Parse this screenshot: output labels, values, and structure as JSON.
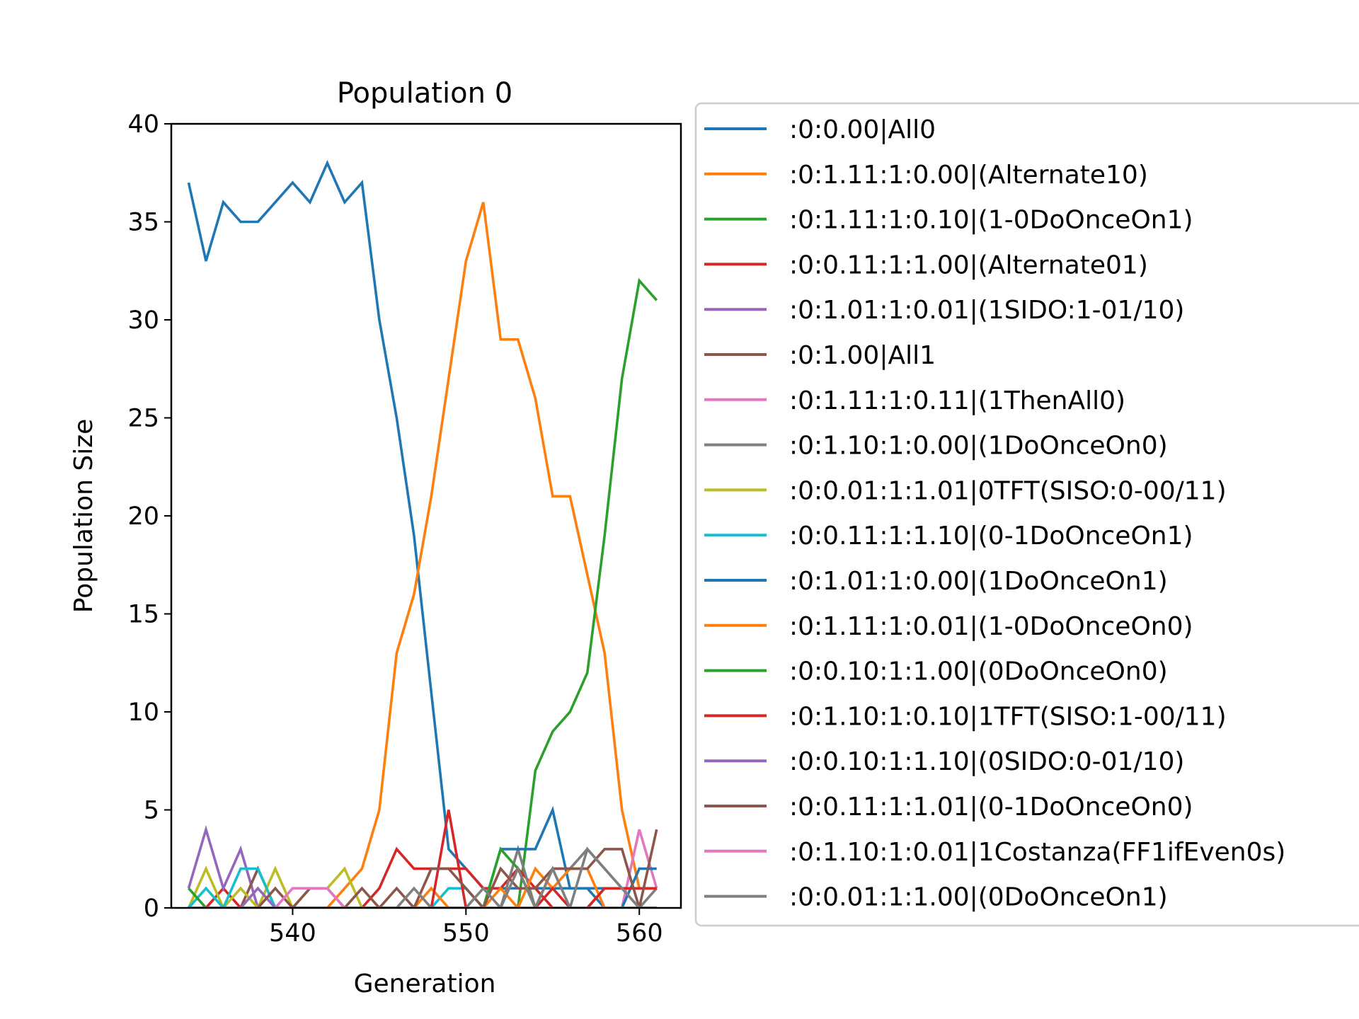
{
  "chart_data": {
    "type": "line",
    "title": "Population 0",
    "xlabel": "Generation",
    "ylabel": "Population Size",
    "xlim": [
      533,
      562.4
    ],
    "ylim": [
      0,
      40
    ],
    "xticks": [
      540,
      550,
      560
    ],
    "yticks": [
      0,
      5,
      10,
      15,
      20,
      25,
      30,
      35,
      40
    ],
    "legend_position": "outside-right",
    "grid": false,
    "x": [
      534,
      535,
      536,
      537,
      538,
      539,
      540,
      541,
      542,
      543,
      544,
      545,
      546,
      547,
      548,
      549,
      550,
      551,
      552,
      553,
      554,
      555,
      556,
      557,
      558,
      559,
      560,
      561
    ],
    "series": [
      {
        "name": ":0:0.00|All0",
        "color": "#1f77b4",
        "values": [
          37,
          33,
          36,
          35,
          35,
          36,
          37,
          36,
          38,
          36,
          37,
          30,
          25,
          19,
          11,
          3,
          2,
          1,
          1,
          1,
          1,
          1,
          1,
          1,
          1,
          1,
          1,
          1
        ]
      },
      {
        "name": ":0:1.11:1:0.00|(Alternate10)",
        "color": "#ff7f0e",
        "values": [
          0,
          0,
          0,
          0,
          0,
          0,
          0,
          0,
          0,
          1,
          2,
          5,
          13,
          16,
          21,
          27,
          33,
          36,
          29,
          29,
          26,
          21,
          21,
          17,
          13,
          5,
          1,
          1
        ]
      },
      {
        "name": ":0:1.11:1:0.10|(1-0DoOnceOn1)",
        "color": "#2ca02c",
        "values": [
          0,
          0,
          0,
          0,
          0,
          0,
          0,
          0,
          0,
          0,
          0,
          0,
          0,
          0,
          0,
          0,
          0,
          0,
          0,
          0,
          7,
          9,
          10,
          12,
          19,
          27,
          32,
          31
        ]
      },
      {
        "name": ":0:0.11:1:1.00|(Alternate01)",
        "color": "#d62728",
        "values": [
          0,
          0,
          1,
          0,
          0,
          0,
          0,
          0,
          0,
          0,
          0,
          1,
          3,
          2,
          2,
          2,
          2,
          1,
          1,
          2,
          1,
          0,
          0,
          0,
          1,
          1,
          1,
          1
        ]
      },
      {
        "name": ":0:1.01:1:0.01|(1SIDO:1-01/10)",
        "color": "#9467bd",
        "values": [
          1,
          4,
          1,
          3,
          0,
          0,
          0,
          0,
          0,
          0,
          0,
          0,
          0,
          0,
          0,
          0,
          0,
          0,
          0,
          0,
          0,
          0,
          0,
          0,
          0,
          0,
          0,
          0
        ]
      },
      {
        "name": ":0:1.00|All1",
        "color": "#8c564b",
        "values": [
          0,
          0,
          0,
          0,
          2,
          0,
          0,
          0,
          0,
          0,
          0,
          0,
          0,
          0,
          0,
          0,
          0,
          0,
          0,
          0,
          0,
          0,
          0,
          0,
          0,
          0,
          0,
          0
        ]
      },
      {
        "name": ":0:1.11:1:0.11|(1ThenAll0)",
        "color": "#e377c2",
        "values": [
          0,
          0,
          0,
          0,
          0,
          0,
          0,
          0,
          0,
          0,
          0,
          0,
          0,
          0,
          0,
          0,
          0,
          0,
          0,
          0,
          0,
          0,
          0,
          0,
          0,
          0,
          4,
          1
        ]
      },
      {
        "name": ":0:1.10:1:0.00|(1DoOnceOn0)",
        "color": "#7f7f7f",
        "values": [
          0,
          0,
          0,
          0,
          0,
          0,
          0,
          0,
          0,
          0,
          0,
          0,
          0,
          0,
          0,
          0,
          0,
          0,
          0,
          3,
          0,
          2,
          2,
          3,
          2,
          1,
          0,
          1
        ]
      },
      {
        "name": ":0:0.01:1:1.01|0TFT(SISO:0-00/11)",
        "color": "#bcbd22",
        "values": [
          0,
          2,
          0,
          1,
          0,
          2,
          0,
          1,
          1,
          2,
          0,
          0,
          0,
          0,
          0,
          0,
          0,
          0,
          0,
          0,
          0,
          0,
          0,
          0,
          0,
          0,
          0,
          0
        ]
      },
      {
        "name": ":0:0.11:1:1.10|(0-1DoOnceOn1)",
        "color": "#17becf",
        "values": [
          0,
          1,
          0,
          2,
          2,
          0,
          0,
          0,
          0,
          0,
          0,
          0,
          0,
          0,
          0,
          1,
          1,
          0,
          0,
          0,
          0,
          0,
          0,
          0,
          0,
          0,
          0,
          0
        ]
      },
      {
        "name": ":0:1.01:1:0.00|(1DoOnceOn1)",
        "color": "#1f77b4",
        "values": [
          0,
          0,
          0,
          0,
          0,
          0,
          0,
          0,
          0,
          0,
          0,
          0,
          0,
          0,
          0,
          0,
          0,
          0,
          3,
          3,
          3,
          5,
          1,
          1,
          0,
          0,
          2,
          2
        ]
      },
      {
        "name": ":0:1.11:1:0.01|(1-0DoOnceOn0)",
        "color": "#ff7f0e",
        "values": [
          0,
          0,
          0,
          0,
          0,
          0,
          0,
          0,
          0,
          0,
          0,
          0,
          0,
          0,
          1,
          0,
          0,
          0,
          1,
          0,
          2,
          1,
          2,
          2,
          0,
          0,
          0,
          0
        ]
      },
      {
        "name": ":0:0.10:1:1.00|(0DoOnceOn0)",
        "color": "#2ca02c",
        "values": [
          1,
          0,
          0,
          0,
          0,
          0,
          0,
          0,
          0,
          0,
          0,
          0,
          0,
          0,
          0,
          0,
          0,
          0,
          3,
          2,
          0,
          0,
          0,
          0,
          0,
          0,
          0,
          0
        ]
      },
      {
        "name": ":0:1.10:1:0.10|1TFT(SISO:1-00/11)",
        "color": "#d62728",
        "values": [
          0,
          0,
          0,
          0,
          0,
          0,
          0,
          0,
          0,
          0,
          0,
          0,
          0,
          0,
          0,
          5,
          0,
          0,
          0,
          0,
          0,
          1,
          0,
          0,
          1,
          1,
          1,
          1
        ]
      },
      {
        "name": ":0:0.10:1:1.10|(0SIDO:0-01/10)",
        "color": "#9467bd",
        "values": [
          0,
          0,
          0,
          0,
          1,
          0,
          0,
          0,
          0,
          0,
          0,
          0,
          0,
          0,
          0,
          0,
          0,
          0,
          0,
          0,
          0,
          0,
          0,
          0,
          0,
          0,
          0,
          0
        ]
      },
      {
        "name": ":0:0.11:1:1.01|(0-1DoOnceOn0)",
        "color": "#8c564b",
        "values": [
          0,
          0,
          0,
          0,
          0,
          1,
          0,
          1,
          1,
          0,
          1,
          0,
          1,
          0,
          2,
          2,
          1,
          0,
          2,
          1,
          1,
          2,
          2,
          2,
          3,
          3,
          0,
          4
        ]
      },
      {
        "name": ":0:1.10:1:0.01|1Costanza(FF1ifEven0s)",
        "color": "#e377c2",
        "values": [
          0,
          0,
          0,
          0,
          0,
          0,
          1,
          1,
          1,
          0,
          0,
          0,
          0,
          0,
          0,
          0,
          0,
          0,
          0,
          0,
          0,
          0,
          0,
          0,
          0,
          0,
          0,
          0
        ]
      },
      {
        "name": ":0:0.01:1:1.00|(0DoOnceOn1)",
        "color": "#7f7f7f",
        "values": [
          0,
          0,
          0,
          0,
          0,
          0,
          0,
          0,
          0,
          0,
          0,
          0,
          0,
          1,
          0,
          0,
          0,
          1,
          0,
          2,
          0,
          2,
          0,
          3,
          2,
          1,
          0,
          0
        ]
      }
    ]
  }
}
